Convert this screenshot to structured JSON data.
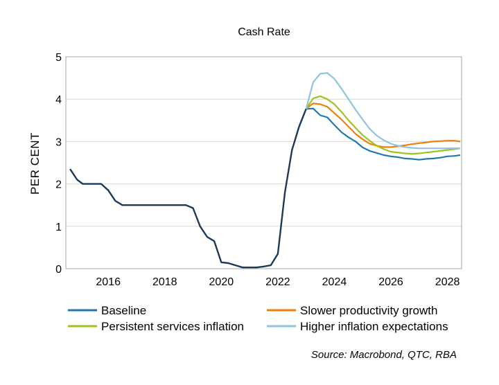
{
  "chart_data": {
    "type": "line",
    "title": "Cash Rate",
    "ylabel": "PER CENT",
    "xlabel": "",
    "xlim": [
      2014.5,
      2028.5
    ],
    "ylim": [
      0,
      5
    ],
    "x_ticks": [
      2016,
      2018,
      2020,
      2022,
      2024,
      2026,
      2028
    ],
    "y_ticks": [
      0,
      1,
      2,
      3,
      4,
      5
    ],
    "grid": "horizontal",
    "legend_placement": "bottom",
    "source": "Source: Macrobond, QTC, RBA",
    "history": {
      "color": "#1b3a57",
      "points": [
        [
          2014.65,
          2.35
        ],
        [
          2014.9,
          2.1
        ],
        [
          2015.1,
          2.0
        ],
        [
          2015.5,
          2.0
        ],
        [
          2015.75,
          2.0
        ],
        [
          2016.0,
          1.85
        ],
        [
          2016.25,
          1.6
        ],
        [
          2016.5,
          1.5
        ],
        [
          2017.0,
          1.5
        ],
        [
          2017.5,
          1.5
        ],
        [
          2018.0,
          1.5
        ],
        [
          2018.5,
          1.5
        ],
        [
          2018.75,
          1.5
        ],
        [
          2019.0,
          1.43
        ],
        [
          2019.25,
          1.0
        ],
        [
          2019.5,
          0.75
        ],
        [
          2019.75,
          0.65
        ],
        [
          2020.0,
          0.15
        ],
        [
          2020.25,
          0.13
        ],
        [
          2020.5,
          0.08
        ],
        [
          2020.75,
          0.03
        ],
        [
          2021.0,
          0.03
        ],
        [
          2021.25,
          0.03
        ],
        [
          2021.5,
          0.05
        ],
        [
          2021.75,
          0.08
        ],
        [
          2022.0,
          0.35
        ],
        [
          2022.25,
          1.8
        ],
        [
          2022.5,
          2.8
        ],
        [
          2022.75,
          3.35
        ],
        [
          2023.0,
          3.77
        ]
      ]
    },
    "series": [
      {
        "name": "Baseline",
        "color": "#1f77b4",
        "points": [
          [
            2023.0,
            3.77
          ],
          [
            2023.25,
            3.78
          ],
          [
            2023.5,
            3.62
          ],
          [
            2023.75,
            3.57
          ],
          [
            2024.0,
            3.39
          ],
          [
            2024.25,
            3.22
          ],
          [
            2024.5,
            3.1
          ],
          [
            2024.75,
            3.0
          ],
          [
            2025.0,
            2.86
          ],
          [
            2025.25,
            2.78
          ],
          [
            2025.5,
            2.73
          ],
          [
            2025.75,
            2.68
          ],
          [
            2026.0,
            2.65
          ],
          [
            2026.25,
            2.63
          ],
          [
            2026.5,
            2.6
          ],
          [
            2026.75,
            2.59
          ],
          [
            2027.0,
            2.57
          ],
          [
            2027.25,
            2.59
          ],
          [
            2027.5,
            2.6
          ],
          [
            2027.75,
            2.62
          ],
          [
            2028.0,
            2.65
          ],
          [
            2028.25,
            2.66
          ],
          [
            2028.45,
            2.68
          ]
        ]
      },
      {
        "name": "Slower productivity growth",
        "color": "#f07f09",
        "points": [
          [
            2023.0,
            3.77
          ],
          [
            2023.25,
            3.9
          ],
          [
            2023.5,
            3.88
          ],
          [
            2023.75,
            3.82
          ],
          [
            2024.0,
            3.67
          ],
          [
            2024.25,
            3.52
          ],
          [
            2024.5,
            3.35
          ],
          [
            2024.75,
            3.18
          ],
          [
            2025.0,
            3.05
          ],
          [
            2025.25,
            2.95
          ],
          [
            2025.5,
            2.9
          ],
          [
            2025.75,
            2.87
          ],
          [
            2026.0,
            2.87
          ],
          [
            2026.25,
            2.89
          ],
          [
            2026.5,
            2.91
          ],
          [
            2026.75,
            2.94
          ],
          [
            2027.0,
            2.96
          ],
          [
            2027.25,
            2.98
          ],
          [
            2027.5,
            3.0
          ],
          [
            2027.75,
            3.01
          ],
          [
            2028.0,
            3.02
          ],
          [
            2028.25,
            3.02
          ],
          [
            2028.45,
            3.0
          ]
        ]
      },
      {
        "name": "Persistent services inflation",
        "color": "#9dc31f",
        "points": [
          [
            2023.0,
            3.77
          ],
          [
            2023.25,
            4.02
          ],
          [
            2023.5,
            4.07
          ],
          [
            2023.75,
            4.0
          ],
          [
            2024.0,
            3.88
          ],
          [
            2024.25,
            3.7
          ],
          [
            2024.5,
            3.5
          ],
          [
            2024.75,
            3.32
          ],
          [
            2025.0,
            3.15
          ],
          [
            2025.25,
            3.02
          ],
          [
            2025.5,
            2.9
          ],
          [
            2025.75,
            2.82
          ],
          [
            2026.0,
            2.76
          ],
          [
            2026.25,
            2.74
          ],
          [
            2026.5,
            2.72
          ],
          [
            2026.75,
            2.71
          ],
          [
            2027.0,
            2.72
          ],
          [
            2027.25,
            2.74
          ],
          [
            2027.5,
            2.76
          ],
          [
            2027.75,
            2.78
          ],
          [
            2028.0,
            2.8
          ],
          [
            2028.25,
            2.82
          ],
          [
            2028.45,
            2.84
          ]
        ]
      },
      {
        "name": "Higher inflation expectations",
        "color": "#8ec4de",
        "points": [
          [
            2023.0,
            3.77
          ],
          [
            2023.25,
            4.4
          ],
          [
            2023.5,
            4.6
          ],
          [
            2023.75,
            4.62
          ],
          [
            2024.0,
            4.48
          ],
          [
            2024.25,
            4.25
          ],
          [
            2024.5,
            4.0
          ],
          [
            2024.75,
            3.75
          ],
          [
            2025.0,
            3.52
          ],
          [
            2025.25,
            3.3
          ],
          [
            2025.5,
            3.14
          ],
          [
            2025.75,
            3.03
          ],
          [
            2026.0,
            2.95
          ],
          [
            2026.25,
            2.9
          ],
          [
            2026.5,
            2.87
          ],
          [
            2026.75,
            2.85
          ],
          [
            2027.0,
            2.84
          ],
          [
            2027.25,
            2.84
          ],
          [
            2027.5,
            2.84
          ],
          [
            2027.75,
            2.84
          ],
          [
            2028.0,
            2.84
          ],
          [
            2028.25,
            2.84
          ],
          [
            2028.45,
            2.84
          ]
        ]
      }
    ]
  }
}
